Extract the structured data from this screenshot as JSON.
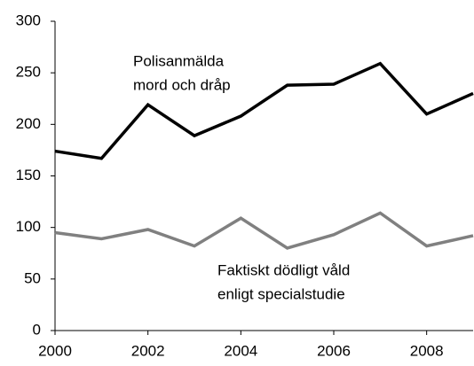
{
  "chart_data": {
    "type": "line",
    "x": [
      2000,
      2001,
      2002,
      2003,
      2004,
      2005,
      2006,
      2007,
      2008,
      2009
    ],
    "series": [
      {
        "label": [
          "Polisanmälda",
          "mord och dråp"
        ],
        "color": "#000000",
        "values": [
          174,
          167,
          219,
          189,
          208,
          238,
          239,
          259,
          210,
          230
        ]
      },
      {
        "label": [
          "Faktiskt dödligt våld",
          "enligt specialstudie"
        ],
        "color": "#808080",
        "values": [
          95,
          89,
          98,
          82,
          109,
          80,
          93,
          114,
          82,
          92
        ]
      }
    ],
    "xlim": [
      2000,
      2009
    ],
    "xticks": [
      2000,
      2002,
      2004,
      2006,
      2008
    ],
    "ylim": [
      0,
      300
    ],
    "yticks": [
      0,
      50,
      100,
      150,
      200,
      250,
      300
    ],
    "grid": false
  }
}
